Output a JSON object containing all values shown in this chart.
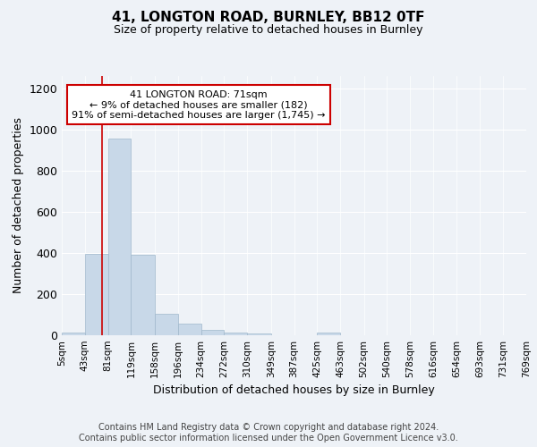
{
  "title1": "41, LONGTON ROAD, BURNLEY, BB12 0TF",
  "title2": "Size of property relative to detached houses in Burnley",
  "xlabel": "Distribution of detached houses by size in Burnley",
  "ylabel": "Number of detached properties",
  "bin_edges": [
    5,
    43,
    81,
    119,
    158,
    196,
    234,
    272,
    310,
    349,
    387,
    425,
    463,
    502,
    540,
    578,
    616,
    654,
    693,
    731,
    769
  ],
  "bar_heights": [
    15,
    395,
    955,
    390,
    105,
    55,
    25,
    15,
    10,
    0,
    0,
    15,
    0,
    0,
    0,
    0,
    0,
    0,
    0,
    0
  ],
  "bar_color": "#c8d8e8",
  "bar_edge_color": "#a0b8cc",
  "red_line_x": 71,
  "annotation_line1": "41 LONGTON ROAD: 71sqm",
  "annotation_line2": "← 9% of detached houses are smaller (182)",
  "annotation_line3": "91% of semi-detached houses are larger (1,745) →",
  "annotation_box_color": "#ffffff",
  "annotation_box_edge_color": "#cc0000",
  "ylim": [
    0,
    1260
  ],
  "yticks": [
    0,
    200,
    400,
    600,
    800,
    1000,
    1200
  ],
  "bg_color": "#eef2f7",
  "footer_text": "Contains HM Land Registry data © Crown copyright and database right 2024.\nContains public sector information licensed under the Open Government Licence v3.0.",
  "tick_labels": [
    "5sqm",
    "43sqm",
    "81sqm",
    "119sqm",
    "158sqm",
    "196sqm",
    "234sqm",
    "272sqm",
    "310sqm",
    "349sqm",
    "387sqm",
    "425sqm",
    "463sqm",
    "502sqm",
    "540sqm",
    "578sqm",
    "616sqm",
    "654sqm",
    "693sqm",
    "731sqm",
    "769sqm"
  ],
  "grid_color": "#ffffff",
  "title1_fontsize": 11,
  "title2_fontsize": 9,
  "ylabel_fontsize": 9,
  "xlabel_fontsize": 9,
  "tick_fontsize": 7.5,
  "ytick_fontsize": 9,
  "annotation_fontsize": 8,
  "footer_fontsize": 7
}
